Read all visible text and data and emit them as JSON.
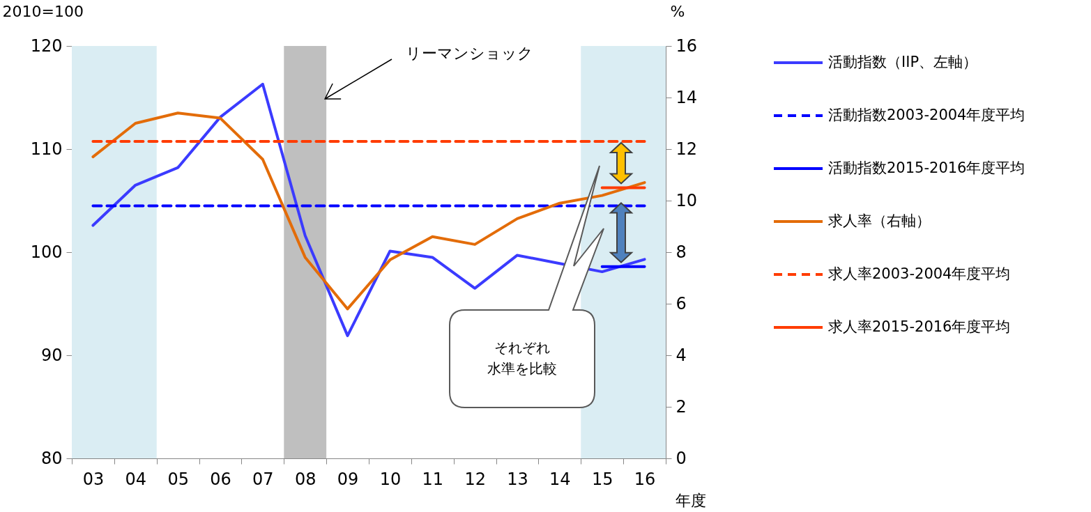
{
  "chart_data": {
    "type": "line",
    "ylabel": "2010=100",
    "y2label": "%",
    "xlabel": "年度",
    "categories": [
      "03",
      "04",
      "05",
      "06",
      "07",
      "08",
      "09",
      "10",
      "11",
      "12",
      "13",
      "14",
      "15",
      "16"
    ],
    "ylim": [
      80,
      120
    ],
    "yticks": [
      80,
      90,
      100,
      110,
      120
    ],
    "y2lim": [
      0,
      16
    ],
    "y2ticks": [
      0,
      2,
      4,
      6,
      8,
      10,
      12,
      14,
      16
    ],
    "series": [
      {
        "name": "活動指数（IIP、左軸）",
        "color": "#3b3bff",
        "line_style": "solid",
        "values": [
          102.6,
          106.5,
          108.2,
          113.1,
          116.3,
          101.6,
          91.9,
          100.1,
          99.5,
          96.5,
          99.7,
          98.9,
          98.1,
          99.3
        ]
      },
      {
        "name": "活動指数2003-2004年度平均",
        "color": "#0000ff",
        "line_style": "dashed",
        "values": [
          104.5,
          104.5,
          104.5,
          104.5,
          104.5,
          104.5,
          104.5,
          104.5,
          104.5,
          104.5,
          104.5,
          104.5,
          104.5,
          104.5
        ]
      },
      {
        "name": "活動指数2015-2016年度平均",
        "color": "#0000ff",
        "line_style": "solid",
        "values": [
          null,
          null,
          null,
          null,
          null,
          null,
          null,
          null,
          null,
          null,
          null,
          null,
          98.6,
          98.6
        ]
      },
      {
        "name": "求人率（右軸）",
        "color": "#e36c09",
        "line_style": "solid",
        "axis": "y2",
        "values": [
          11.7,
          13.0,
          13.4,
          13.2,
          11.6,
          7.8,
          5.8,
          7.7,
          8.6,
          8.3,
          9.3,
          9.9,
          10.2,
          10.7
        ]
      },
      {
        "name": "求人率2003-2004年度平均",
        "color": "#ff3c00",
        "line_style": "dashed",
        "axis": "y2",
        "values": [
          12.3,
          12.3,
          12.3,
          12.3,
          12.3,
          12.3,
          12.3,
          12.3,
          12.3,
          12.3,
          12.3,
          12.3,
          12.3,
          12.3
        ]
      },
      {
        "name": "求人率2015-2016年度平均",
        "color": "#ff3c00",
        "line_style": "solid",
        "axis": "y2",
        "values": [
          null,
          null,
          null,
          null,
          null,
          null,
          null,
          null,
          null,
          null,
          null,
          null,
          10.5,
          10.5
        ]
      }
    ],
    "bands": [
      {
        "axis": "x",
        "from": "03",
        "to": "04",
        "color": "#daedf3"
      },
      {
        "axis": "x",
        "from": "08",
        "to": "08",
        "color": "#bfbfbf",
        "label": "リーマンショック"
      },
      {
        "axis": "x",
        "from": "15",
        "to": "16",
        "color": "#daedf3"
      }
    ],
    "annotations": [
      "それぞれ水準を比較"
    ],
    "legend": "right",
    "grid": false
  }
}
